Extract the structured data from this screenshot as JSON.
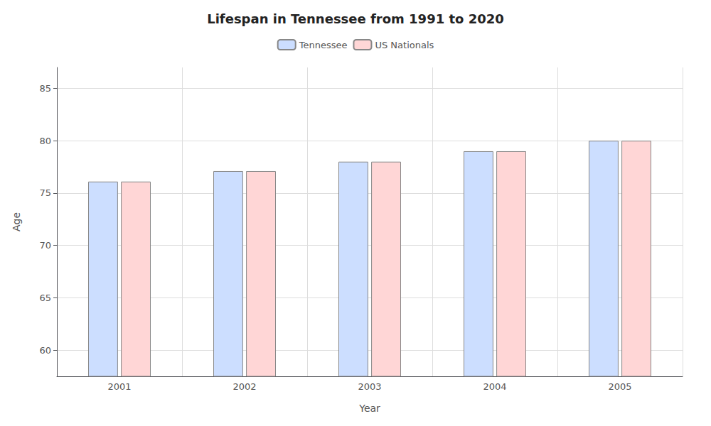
{
  "chart_data": {
    "type": "bar",
    "title": "Lifespan in Tennessee from 1991 to 2020",
    "xlabel": "Year",
    "ylabel": "Age",
    "categories": [
      "2001",
      "2002",
      "2003",
      "2004",
      "2005"
    ],
    "series": [
      {
        "name": "Tennessee",
        "color": "#ccdeff",
        "values": [
          76.1,
          77.1,
          78.0,
          79.0,
          80.0
        ]
      },
      {
        "name": "US Nationals",
        "color": "#ffd6d6",
        "values": [
          76.1,
          77.1,
          78.0,
          79.0,
          80.0
        ]
      }
    ],
    "ylim": [
      57.5,
      87
    ],
    "yticks": [
      60,
      65,
      70,
      75,
      80,
      85
    ],
    "grid": true,
    "legend": "top"
  }
}
